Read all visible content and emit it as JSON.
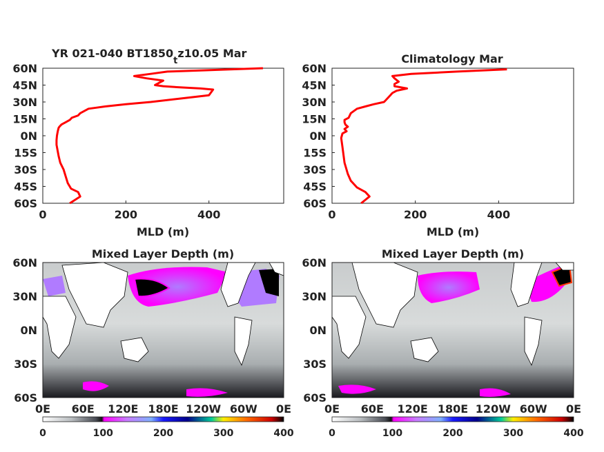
{
  "colors": {
    "profile_line": "#ff0000",
    "axis": "#222222",
    "land": "#ffffff",
    "coast": "#000000"
  },
  "chart_data": [
    {
      "type": "line",
      "title_main": "YR 021-040 BT1850",
      "title_sub": "t",
      "title_tail": "z10.05 Mar",
      "xlabel": "MLD (m)",
      "xlim": [
        0,
        580
      ],
      "ylim": [
        -60,
        60
      ],
      "xticks": [
        "0",
        "200",
        "400"
      ],
      "yticks": [
        "60N",
        "45N",
        "30N",
        "15N",
        "0N",
        "15S",
        "30S",
        "45S",
        "60S"
      ],
      "series": [
        {
          "x": [
            65,
            90,
            85,
            68,
            60,
            55,
            50,
            42,
            38,
            35,
            33,
            33,
            34,
            35,
            36,
            38,
            40,
            45,
            55,
            65,
            70,
            85,
            90,
            100,
            110,
            130,
            150,
            200,
            260,
            330,
            400,
            410,
            380,
            330,
            290,
            270,
            280,
            290,
            250,
            220,
            260,
            300,
            380,
            530
          ],
          "y": [
            -60,
            -54,
            -50,
            -47,
            -42,
            -36,
            -30,
            -24,
            -18,
            -12,
            -8,
            -4,
            0,
            2,
            4,
            7,
            8,
            10,
            12,
            14,
            16,
            18,
            20,
            22,
            24,
            25,
            26,
            28,
            30,
            33,
            36,
            41,
            42,
            43,
            44,
            45,
            47,
            49,
            51,
            53,
            55,
            57,
            58,
            60
          ]
        }
      ]
    },
    {
      "type": "line",
      "title": "Climatology Mar",
      "xlabel": "MLD (m)",
      "xlim": [
        0,
        580
      ],
      "ylim": [
        -60,
        60
      ],
      "xticks": [
        "0",
        "200",
        "400"
      ],
      "yticks": [
        "60N",
        "45N",
        "30N",
        "15N",
        "0N",
        "15S",
        "30S",
        "45S",
        "60S"
      ],
      "series": [
        {
          "x": [
            70,
            90,
            80,
            60,
            45,
            38,
            30,
            25,
            22,
            25,
            35,
            30,
            38,
            32,
            30,
            30,
            40,
            45,
            60,
            80,
            100,
            125,
            135,
            140,
            145,
            155,
            180,
            150,
            150,
            160,
            150,
            145,
            190,
            300,
            420
          ],
          "y": [
            -60,
            -54,
            -50,
            -46,
            -40,
            -34,
            -24,
            -10,
            -2,
            2,
            4,
            6,
            8,
            10,
            12,
            14,
            16,
            20,
            24,
            26,
            28,
            30,
            34,
            36,
            38,
            40,
            42,
            44,
            46,
            48,
            51,
            53,
            55,
            57,
            59
          ]
        }
      ]
    },
    {
      "type": "heatmap",
      "title": "Mixed Layer Depth (m)",
      "xticks": [
        "0E",
        "60E",
        "120E",
        "180E",
        "120W",
        "60W",
        "0E"
      ],
      "yticks": [
        "60N",
        "30N",
        "0N",
        "30S",
        "60S"
      ],
      "colorbar_ticks": [
        "0",
        "100",
        "200",
        "300",
        "400"
      ],
      "colorbar_range": [
        0,
        400
      ]
    },
    {
      "type": "heatmap",
      "title": "Mixed Layer Depth (m)",
      "xticks": [
        "0E",
        "60E",
        "120E",
        "180E",
        "120W",
        "60W",
        "0E"
      ],
      "yticks": [
        "60N",
        "30N",
        "0N",
        "30S",
        "60S"
      ],
      "colorbar_ticks": [
        "0",
        "100",
        "200",
        "300",
        "400"
      ],
      "colorbar_range": [
        0,
        400
      ]
    }
  ]
}
